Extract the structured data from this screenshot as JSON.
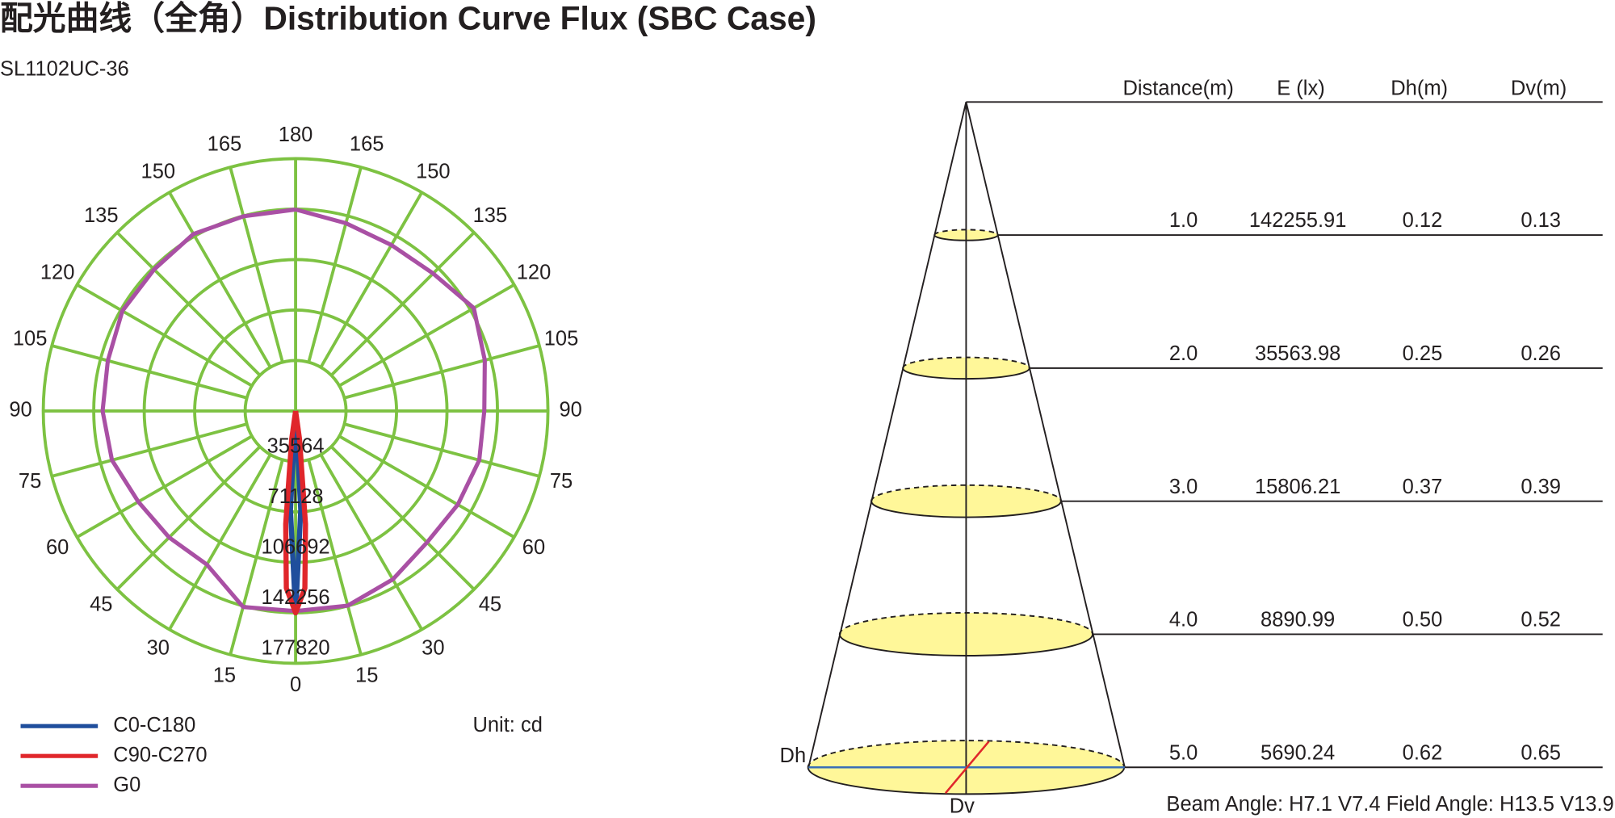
{
  "title": "配光曲线（全角）Distribution Curve Flux (SBC Case)",
  "subtitle": "SL1102UC-36",
  "chart_data": {
    "type": "polar",
    "unit_label": "Unit: cd",
    "ylim": [
      0,
      177820
    ],
    "yticks": [
      35564,
      71128,
      106692,
      142256,
      177820
    ],
    "xticks": [
      0,
      15,
      30,
      45,
      60,
      75,
      90,
      105,
      120,
      135,
      150,
      165,
      180
    ],
    "grid": true,
    "grid_color": "#7dc242",
    "series": [
      {
        "name": "G0",
        "color": "#a950a4",
        "x": [
          -180,
          -165,
          -150,
          -135,
          -120,
          -105,
          -90,
          -75,
          -60,
          -45,
          -30,
          -15,
          0,
          15,
          30,
          45,
          60,
          75,
          90,
          105,
          120,
          135,
          150,
          165,
          180
        ],
        "values": [
          142000,
          142000,
          144000,
          141000,
          141000,
          137000,
          136000,
          134000,
          128000,
          126000,
          125000,
          143000,
          141000,
          142000,
          137000,
          131000,
          132000,
          134000,
          133000,
          138000,
          145000,
          137000,
          135000,
          137000,
          142000
        ]
      },
      {
        "name": "C0-C180",
        "color": "#1f4e9c",
        "x": [
          -6,
          -3,
          0,
          3,
          6
        ],
        "values": [
          0,
          70000,
          142256,
          70000,
          0
        ]
      },
      {
        "name": "C90-C270",
        "color": "#e0262b",
        "x": [
          -90,
          -8,
          -5,
          -3,
          0,
          3,
          5,
          8,
          90
        ],
        "values": [
          0,
          20000,
          80000,
          125000,
          142256,
          125000,
          80000,
          20000,
          0
        ]
      }
    ]
  },
  "cone": {
    "headers": [
      "Distance(m)",
      "E (lx)",
      "Dh(m)",
      "Dv(m)"
    ],
    "rows": [
      [
        "1.0",
        "142255.91",
        "0.12",
        "0.13"
      ],
      [
        "2.0",
        "35563.98",
        "0.25",
        "0.26"
      ],
      [
        "3.0",
        "15806.21",
        "0.37",
        "0.39"
      ],
      [
        "4.0",
        "8890.99",
        "0.50",
        "0.52"
      ],
      [
        "5.0",
        "5690.24",
        "0.62",
        "0.65"
      ]
    ],
    "dh_label": "Dh",
    "dv_label": "Dv",
    "footer": "Beam Angle: H7.1 V7.4  Field Angle: H13.5 V13.9"
  }
}
